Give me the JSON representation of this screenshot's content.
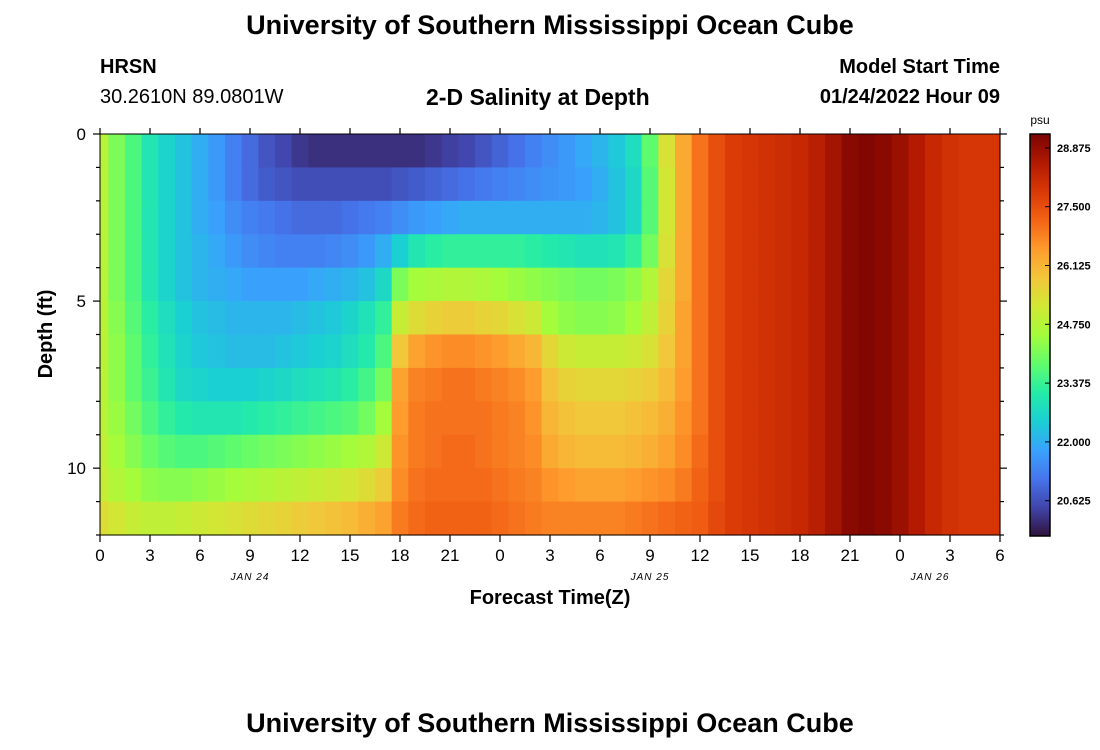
{
  "header": {
    "title": "University of Southern Mississippi Ocean Cube",
    "station": "HRSN",
    "coordinates": "30.2610N  89.0801W",
    "subtitle": "2-D Salinity at Depth",
    "model_start_label": "Model Start Time",
    "model_start_value": "01/24/2022 Hour 09"
  },
  "footer": {
    "title": "University of Southern Mississippi Ocean Cube"
  },
  "chart_data": {
    "type": "heatmap",
    "title": "2-D Salinity at Depth",
    "xlabel": "Forecast Time(Z)",
    "ylabel": "Depth (ft)",
    "x_tick_labels": [
      "0",
      "3",
      "6",
      "9",
      "12",
      "15",
      "18",
      "21",
      "0",
      "3",
      "6",
      "9",
      "12",
      "15",
      "18",
      "21",
      "0",
      "3",
      "6"
    ],
    "date_labels": [
      {
        "label": "JAN 24",
        "at_tick": 3
      },
      {
        "label": "JAN 25",
        "at_tick": 11
      },
      {
        "label": "JAN 26",
        "at_tick": 16.6
      }
    ],
    "y_tick_labels": [
      "0",
      "5",
      "10"
    ],
    "y_range_ft": [
      0,
      12
    ],
    "colorbar": {
      "unit": "psu",
      "tick_labels": [
        "28.875",
        "27.500",
        "26.125",
        "24.750",
        "23.375",
        "22.000",
        "20.625"
      ],
      "range": [
        19.8,
        29.2
      ],
      "colors": [
        "#30123b",
        "#4145ab",
        "#4675ed",
        "#39a2fc",
        "#1bcfd4",
        "#24eca6",
        "#61fc6c",
        "#a4fc3b",
        "#d1e834",
        "#f3c63a",
        "#fe9b2d",
        "#f36315",
        "#d93806",
        "#b11901",
        "#7a0402"
      ]
    },
    "time_hours": [
      0,
      1,
      2,
      3,
      4,
      5,
      6,
      7,
      8,
      9,
      10,
      11,
      12,
      13,
      14,
      15,
      16,
      17,
      18,
      19,
      20,
      21,
      22,
      23,
      24,
      25,
      26,
      27,
      28,
      29,
      30,
      31,
      32,
      33,
      34,
      35,
      36,
      37,
      38,
      39,
      40,
      41,
      42,
      43,
      44,
      45,
      46,
      47,
      48,
      49,
      50,
      51,
      52,
      53,
      54
    ],
    "depth_layers_ft": [
      0.5,
      1.5,
      2.5,
      3.5,
      4.5,
      5.5,
      6.5,
      7.5,
      8.5,
      9.5,
      10.5,
      11.5
    ],
    "salinity_psu": [
      [
        24.8,
        24.1,
        23.6,
        23.0,
        22.6,
        22.3,
        22.0,
        21.7,
        21.3,
        21.0,
        20.7,
        20.5,
        20.3,
        20.2,
        20.2,
        20.2,
        20.2,
        20.2,
        20.2,
        20.2,
        20.3,
        20.4,
        20.5,
        20.7,
        20.9,
        21.1,
        21.3,
        21.5,
        21.7,
        21.9,
        22.1,
        22.4,
        22.8,
        23.8,
        25.3,
        26.3,
        27.0,
        27.5,
        27.8,
        27.9,
        28.0,
        28.1,
        28.2,
        28.4,
        28.7,
        29.0,
        29.1,
        29.0,
        28.8,
        28.5,
        28.2,
        28.0,
        27.9,
        27.9,
        27.9
      ],
      [
        24.8,
        24.1,
        23.6,
        23.0,
        22.6,
        22.3,
        22.0,
        21.7,
        21.3,
        21.0,
        20.8,
        20.7,
        20.6,
        20.6,
        20.6,
        20.6,
        20.6,
        20.6,
        20.7,
        20.8,
        20.9,
        21.0,
        21.1,
        21.2,
        21.3,
        21.4,
        21.5,
        21.6,
        21.7,
        21.8,
        22.0,
        22.3,
        22.7,
        23.7,
        25.2,
        26.3,
        27.0,
        27.5,
        27.8,
        27.9,
        28.0,
        28.1,
        28.2,
        28.4,
        28.7,
        29.0,
        29.1,
        29.0,
        28.8,
        28.5,
        28.2,
        28.0,
        27.9,
        27.9,
        27.9
      ],
      [
        24.8,
        24.1,
        23.6,
        23.0,
        22.6,
        22.3,
        22.0,
        21.8,
        21.5,
        21.3,
        21.2,
        21.1,
        21.0,
        21.0,
        21.0,
        21.1,
        21.2,
        21.3,
        21.5,
        21.7,
        21.8,
        21.9,
        22.0,
        22.0,
        22.0,
        22.0,
        22.0,
        22.0,
        22.0,
        22.0,
        22.1,
        22.3,
        22.7,
        23.7,
        25.2,
        26.3,
        27.0,
        27.5,
        27.8,
        27.9,
        28.0,
        28.1,
        28.2,
        28.4,
        28.7,
        29.0,
        29.1,
        29.0,
        28.8,
        28.5,
        28.2,
        28.0,
        27.9,
        27.9,
        27.9
      ],
      [
        24.8,
        24.1,
        23.6,
        23.0,
        22.6,
        22.3,
        22.1,
        21.9,
        21.7,
        21.5,
        21.4,
        21.3,
        21.3,
        21.3,
        21.4,
        21.5,
        21.7,
        22.0,
        22.5,
        23.0,
        23.2,
        23.3,
        23.3,
        23.3,
        23.3,
        23.3,
        23.2,
        23.1,
        23.0,
        22.9,
        22.9,
        23.0,
        23.3,
        24.0,
        25.3,
        26.3,
        27.0,
        27.5,
        27.8,
        27.9,
        28.0,
        28.1,
        28.2,
        28.4,
        28.7,
        29.0,
        29.1,
        29.0,
        28.8,
        28.5,
        28.2,
        28.0,
        27.9,
        27.9,
        27.9
      ],
      [
        24.8,
        24.1,
        23.6,
        23.0,
        22.6,
        22.3,
        22.1,
        22.0,
        21.9,
        21.8,
        21.8,
        21.8,
        21.8,
        21.9,
        22.0,
        22.1,
        22.3,
        22.7,
        24.1,
        24.5,
        24.6,
        24.7,
        24.7,
        24.6,
        24.5,
        24.4,
        24.3,
        24.2,
        24.1,
        24.0,
        24.0,
        24.1,
        24.3,
        24.7,
        25.5,
        26.3,
        27.0,
        27.5,
        27.8,
        27.9,
        28.0,
        28.1,
        28.2,
        28.4,
        28.7,
        29.0,
        29.1,
        29.0,
        28.8,
        28.5,
        28.2,
        28.0,
        27.9,
        27.9,
        27.9
      ],
      [
        24.8,
        24.2,
        23.7,
        23.2,
        22.8,
        22.5,
        22.3,
        22.2,
        22.1,
        22.1,
        22.1,
        22.1,
        22.2,
        22.3,
        22.4,
        22.6,
        22.9,
        23.3,
        25.0,
        25.4,
        25.6,
        25.7,
        25.7,
        25.6,
        25.5,
        25.3,
        25.1,
        24.5,
        24.3,
        24.2,
        24.2,
        24.3,
        24.5,
        24.9,
        25.6,
        26.4,
        27.0,
        27.5,
        27.8,
        27.9,
        28.0,
        28.1,
        28.2,
        28.4,
        28.7,
        29.0,
        29.1,
        29.0,
        28.8,
        28.5,
        28.2,
        28.0,
        27.9,
        27.9,
        27.9
      ],
      [
        24.8,
        24.3,
        23.8,
        23.3,
        22.9,
        22.6,
        22.4,
        22.3,
        22.2,
        22.2,
        22.2,
        22.3,
        22.4,
        22.5,
        22.6,
        22.8,
        23.1,
        23.6,
        25.8,
        26.4,
        26.6,
        26.7,
        26.7,
        26.6,
        26.5,
        26.3,
        26.1,
        25.5,
        25.1,
        25.0,
        25.0,
        25.0,
        25.1,
        25.3,
        25.8,
        26.4,
        27.0,
        27.5,
        27.8,
        27.9,
        28.0,
        28.1,
        28.2,
        28.4,
        28.7,
        29.0,
        29.1,
        29.0,
        28.8,
        28.5,
        28.2,
        28.0,
        27.9,
        27.9,
        27.9
      ],
      [
        24.8,
        24.3,
        23.8,
        23.4,
        23.0,
        22.7,
        22.6,
        22.5,
        22.5,
        22.5,
        22.6,
        22.7,
        22.8,
        22.9,
        23.0,
        23.2,
        23.5,
        24.0,
        26.4,
        26.8,
        26.9,
        27.0,
        27.0,
        26.9,
        26.8,
        26.7,
        26.5,
        25.9,
        25.6,
        25.5,
        25.5,
        25.5,
        25.6,
        25.7,
        26.0,
        26.5,
        27.0,
        27.5,
        27.8,
        27.9,
        28.0,
        28.1,
        28.2,
        28.4,
        28.7,
        29.0,
        29.1,
        29.0,
        28.8,
        28.5,
        28.2,
        28.0,
        27.9,
        27.9,
        27.9
      ],
      [
        24.8,
        24.4,
        24.0,
        23.6,
        23.3,
        23.1,
        23.0,
        23.0,
        23.0,
        23.1,
        23.2,
        23.3,
        23.4,
        23.5,
        23.6,
        23.7,
        24.0,
        24.5,
        26.5,
        26.9,
        27.0,
        27.0,
        27.0,
        27.0,
        26.9,
        26.8,
        26.6,
        26.1,
        25.9,
        25.8,
        25.8,
        25.8,
        25.9,
        26.0,
        26.2,
        26.6,
        27.0,
        27.5,
        27.8,
        27.9,
        28.0,
        28.1,
        28.2,
        28.4,
        28.7,
        29.0,
        29.1,
        29.0,
        28.8,
        28.5,
        28.2,
        28.0,
        27.9,
        27.9,
        27.9
      ],
      [
        24.9,
        24.5,
        24.2,
        23.9,
        23.7,
        23.6,
        23.6,
        23.7,
        23.8,
        23.9,
        24.0,
        24.1,
        24.2,
        24.3,
        24.4,
        24.5,
        24.7,
        25.1,
        26.6,
        26.9,
        27.0,
        27.1,
        27.1,
        27.0,
        26.9,
        26.8,
        26.7,
        26.3,
        26.1,
        26.0,
        26.0,
        26.0,
        26.1,
        26.2,
        26.4,
        26.7,
        27.1,
        27.5,
        27.8,
        27.9,
        28.0,
        28.1,
        28.2,
        28.4,
        28.7,
        29.0,
        29.1,
        29.0,
        28.8,
        28.5,
        28.2,
        28.0,
        27.9,
        27.9,
        27.9
      ],
      [
        25.0,
        24.7,
        24.5,
        24.3,
        24.2,
        24.2,
        24.3,
        24.4,
        24.5,
        24.6,
        24.7,
        24.8,
        24.9,
        25.0,
        25.1,
        25.2,
        25.4,
        25.7,
        26.7,
        27.0,
        27.1,
        27.1,
        27.1,
        27.1,
        27.0,
        26.9,
        26.8,
        26.6,
        26.5,
        26.4,
        26.4,
        26.4,
        26.5,
        26.6,
        26.7,
        26.9,
        27.2,
        27.5,
        27.8,
        27.9,
        28.0,
        28.1,
        28.2,
        28.4,
        28.7,
        29.0,
        29.1,
        29.0,
        28.8,
        28.5,
        28.2,
        28.0,
        27.9,
        27.9,
        27.9
      ],
      [
        25.4,
        25.2,
        25.0,
        24.9,
        24.9,
        25.0,
        25.1,
        25.2,
        25.3,
        25.4,
        25.5,
        25.6,
        25.7,
        25.8,
        25.9,
        26.0,
        26.2,
        26.4,
        26.9,
        27.1,
        27.2,
        27.2,
        27.2,
        27.2,
        27.1,
        27.0,
        26.9,
        26.8,
        26.8,
        26.8,
        26.8,
        26.8,
        26.9,
        27.0,
        27.1,
        27.2,
        27.3,
        27.6,
        27.8,
        27.9,
        28.0,
        28.1,
        28.2,
        28.4,
        28.7,
        29.0,
        29.1,
        29.0,
        28.8,
        28.5,
        28.2,
        28.0,
        27.9,
        27.9,
        27.9
      ]
    ]
  }
}
